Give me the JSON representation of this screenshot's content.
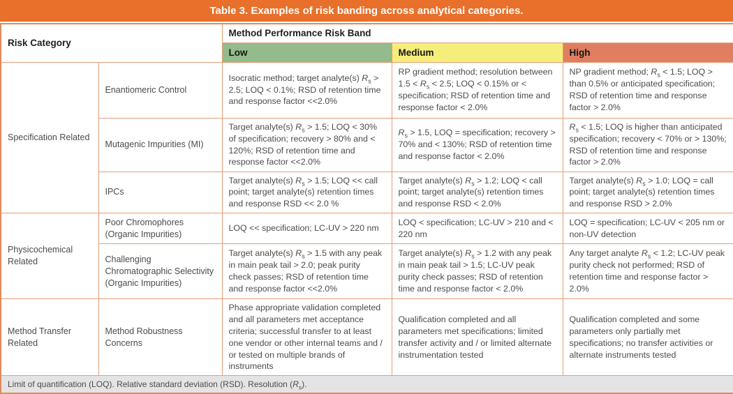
{
  "title": "Table 3. Examples of risk banding across analytical categories.",
  "header": {
    "risk_category": "Risk Category",
    "band_group": "Method Performance Risk Band",
    "bands": {
      "low": "Low",
      "medium": "Medium",
      "high": "High"
    }
  },
  "colors": {
    "title_bar": "#e8702a",
    "band_low": "#93bb8b",
    "band_medium": "#f5ee7b",
    "band_high": "#df7f60",
    "grid_border": "#e59d74",
    "footnote_bg": "#e4e4e6",
    "body_text": "#4b4b4b"
  },
  "groups": [
    {
      "category": "Specification Related",
      "rows": [
        {
          "name": "Enantiomeric Control",
          "low": "Isocratic method; target analyte(s) R_s > 2.5; LOQ < 0.1%; RSD of retention time and response factor <<2.0%",
          "medium": "RP gradient method; resolution between 1.5 < R_s < 2.5; LOQ < 0.15% or < specification; RSD of retention time and response factor < 2.0%",
          "high": "NP gradient method; R_s < 1.5; LOQ > than 0.5% or anticipated specification; RSD of retention time and response factor > 2.0%"
        },
        {
          "name": "Mutagenic Impurities (MI)",
          "low": "Target analyte(s) R_s > 1.5; LOQ < 30% of specification; recovery > 80% and < 120%; RSD of retention time and response factor <<2.0%",
          "medium": "R_s > 1.5, LOQ = specification; recovery > 70% and < 130%; RSD of retention time and response factor < 2.0%",
          "high": "R_s < 1.5; LOQ is higher than anticipated specification; recovery < 70% or > 130%; RSD of retention time and response factor > 2.0%"
        },
        {
          "name": "IPCs",
          "low": "Target analyte(s) R_s > 1.5; LOQ << call point; target analyte(s) retention times and response RSD << 2.0 %",
          "medium": "Target analyte(s) R_s > 1.2; LOQ < call point; target analyte(s) retention times and response RSD < 2.0%",
          "high": "Target analyte(s) R_s > 1.0; LOQ = call point; target analyte(s) retention times and response RSD > 2.0%"
        }
      ]
    },
    {
      "category": "Physicochemical Related",
      "rows": [
        {
          "name": "Poor Chromophores (Organic Impurities)",
          "low": "LOQ << specification; LC-UV > 220 nm",
          "medium": "LOQ < specification; LC-UV > 210 and < 220 nm",
          "high": "LOQ = specification; LC-UV < 205 nm or non-UV detection"
        },
        {
          "name": "Challenging Chromatographic Selectivity (Organic Impurities)",
          "low": "Target analyte(s) R_s > 1.5 with any peak in main peak tail > 2.0; peak purity check passes; RSD of retention time and response factor <<2.0%",
          "medium": "Target analyte(s) R_s > 1.2 with any peak in main peak tail > 1.5; LC-UV peak purity check passes; RSD of retention time and response factor < 2.0%",
          "high": "Any target analyte R_s < 1.2; LC-UV peak purity check not performed; RSD of retention time and response factor > 2.0%"
        }
      ]
    },
    {
      "category": "Method Transfer Related",
      "rows": [
        {
          "name": "Method Robustness Concerns",
          "low": "Phase appropriate validation completed and all parameters met acceptance criteria; successful transfer to at least one vendor or other internal teams and / or tested on multiple brands of instruments",
          "medium": "Qualification completed and all parameters met specifications; limited transfer activity and / or limited alternate instrumentation tested",
          "high": "Qualification completed and some parameters only partially met specifications; no transfer activities or alternate instruments tested"
        }
      ]
    }
  ],
  "footnote": "Limit of quantification (LOQ). Relative standard deviation (RSD). Resolution (R_s)."
}
